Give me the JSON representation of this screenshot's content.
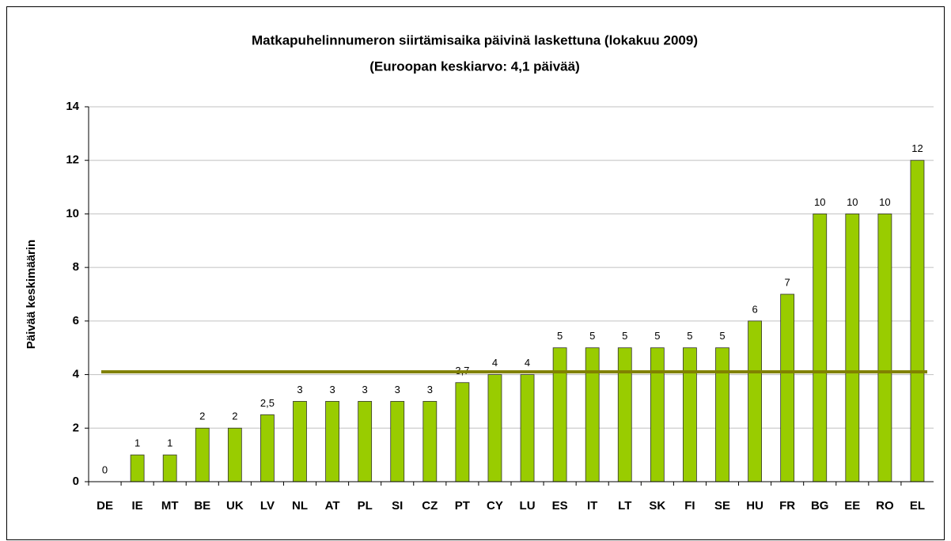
{
  "chart_data": {
    "type": "bar",
    "title": "Matkapuhelinnumeron siirtämisaika päivinä laskettuna (lokakuu 2009)",
    "subtitle": "(Euroopan keskiarvo: 4,1 päivää)",
    "y_label": "Päivää keskimäärin",
    "categories": [
      "DE",
      "IE",
      "MT",
      "BE",
      "UK",
      "LV",
      "NL",
      "AT",
      "PL",
      "SI",
      "CZ",
      "PT",
      "CY",
      "LU",
      "ES",
      "IT",
      "LT",
      "SK",
      "FI",
      "SE",
      "HU",
      "FR",
      "BG",
      "EE",
      "RO",
      "EL"
    ],
    "values": [
      0,
      1,
      1,
      2,
      2,
      2.5,
      3,
      3,
      3,
      3,
      3,
      3.7,
      4,
      4,
      5,
      5,
      5,
      5,
      5,
      5,
      6,
      7,
      10,
      10,
      10,
      12
    ],
    "value_labels": [
      "0",
      "1",
      "1",
      "2",
      "2",
      "2,5",
      "3",
      "3",
      "3",
      "3",
      "3",
      "3,7",
      "4",
      "4",
      "5",
      "5",
      "5",
      "5",
      "5",
      "5",
      "6",
      "7",
      "10",
      "10",
      "10",
      "12"
    ],
    "color": "#99cc00",
    "average": 4.1,
    "average_color": "#808000",
    "ylim": [
      0,
      14
    ],
    "yticks": [
      0,
      2,
      4,
      6,
      8,
      10,
      12,
      14
    ],
    "grid": true
  }
}
